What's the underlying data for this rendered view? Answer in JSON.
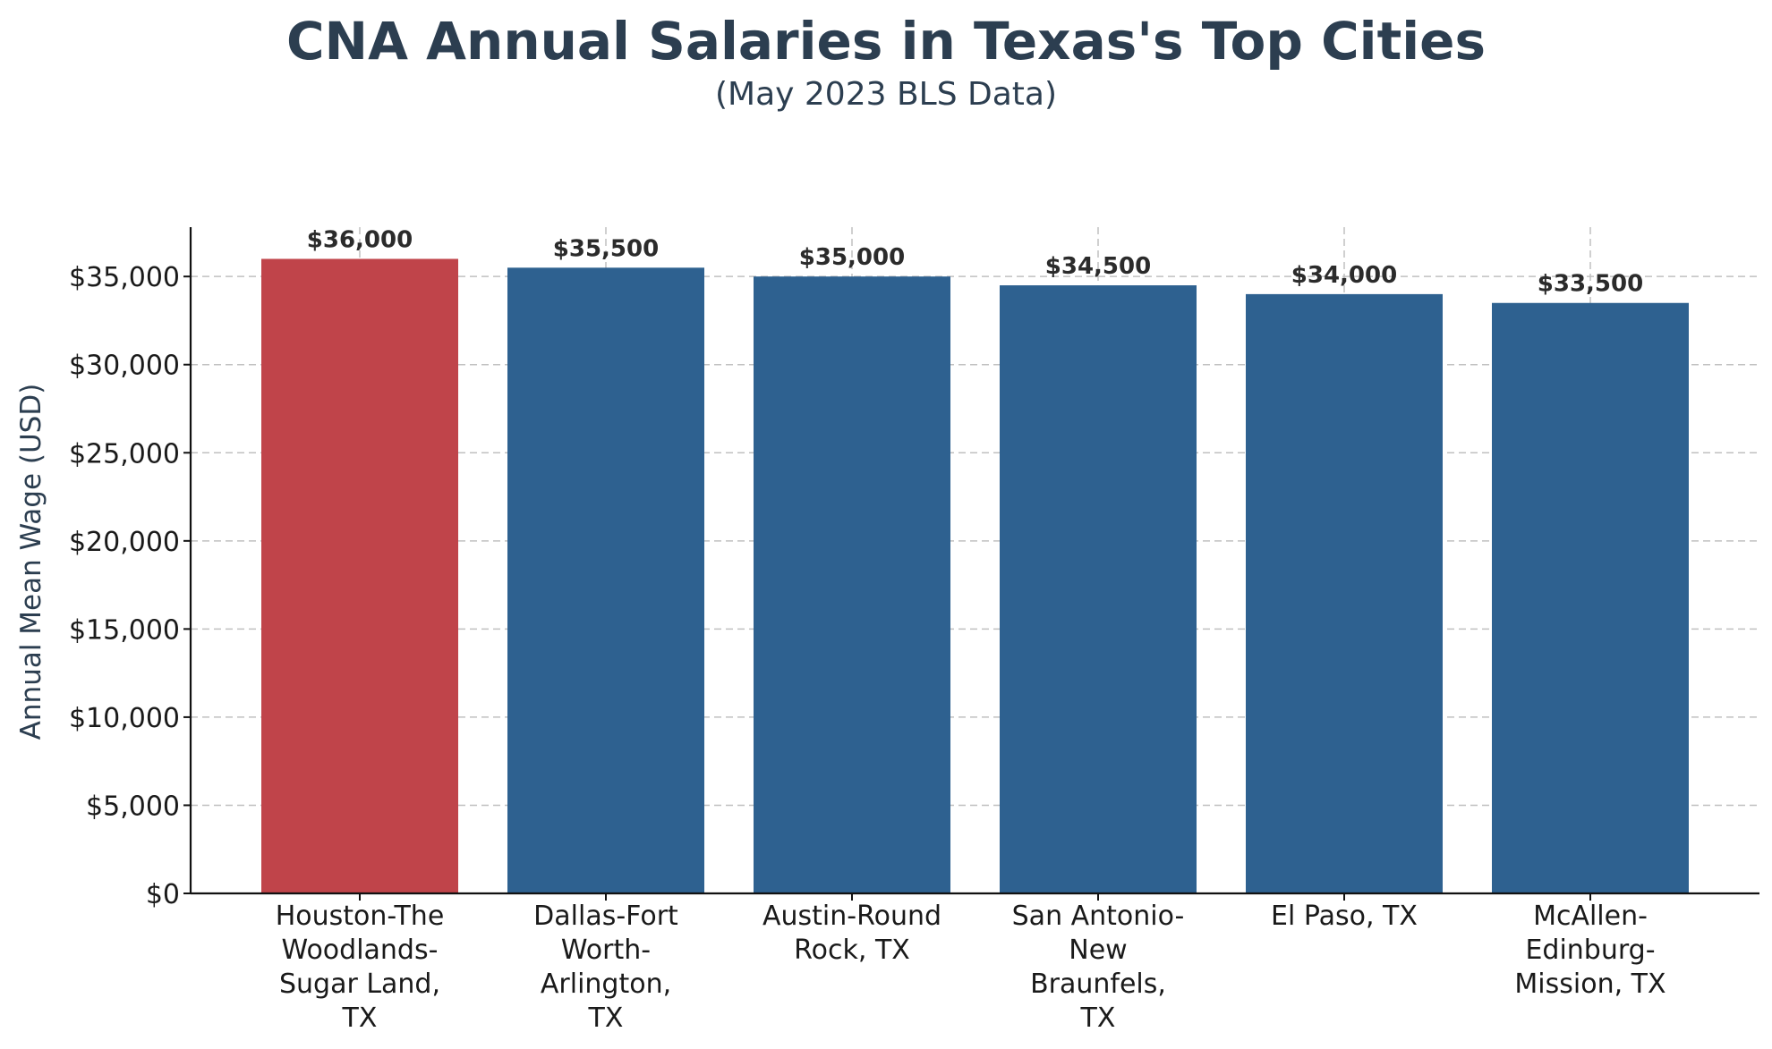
{
  "chart_data": {
    "type": "bar",
    "title": "CNA Annual Salaries in Texas's Top Cities",
    "subtitle": "(May 2023 BLS Data)",
    "xlabel": "",
    "ylabel": "Annual Mean Wage (USD)",
    "categories": [
      [
        "Houston-The",
        "Woodlands-",
        "Sugar Land,",
        "TX"
      ],
      [
        "Dallas-Fort",
        "Worth-",
        "Arlington,",
        "TX"
      ],
      [
        "Austin-Round",
        "Rock, TX"
      ],
      [
        "San Antonio-",
        "New",
        "Braunfels,",
        "TX"
      ],
      [
        "El Paso, TX"
      ],
      [
        "McAllen-",
        "Edinburg-",
        "Mission, TX"
      ]
    ],
    "values": [
      36000,
      35500,
      35000,
      34500,
      34000,
      33500
    ],
    "data_labels": [
      "$36,000",
      "$35,500",
      "$35,000",
      "$34,500",
      "$34,000",
      "$33,500"
    ],
    "ylim": [
      0,
      37800
    ],
    "yticks": [
      0,
      5000,
      10000,
      15000,
      20000,
      25000,
      30000,
      35000
    ],
    "ytick_labels": [
      "$0",
      "$5,000",
      "$10,000",
      "$15,000",
      "$20,000",
      "$25,000",
      "$30,000",
      "$35,000"
    ],
    "grid": true,
    "colors": {
      "highlight": "#c0444a",
      "default": "#2e6190",
      "text": "#2c3e50"
    }
  }
}
